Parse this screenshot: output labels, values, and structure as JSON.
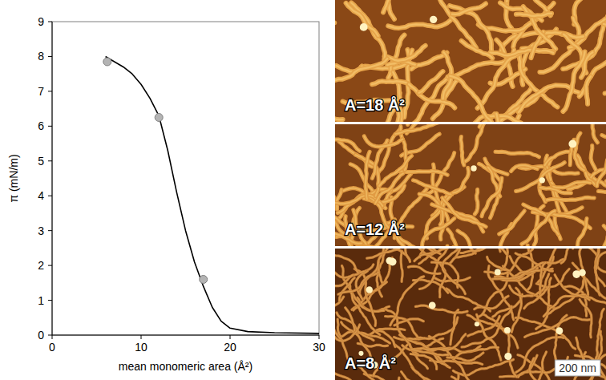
{
  "chart_data": {
    "type": "line",
    "x_label": "mean monomeric area (Å²)",
    "y_label": "π (mN/m)",
    "xlim": [
      0,
      30
    ],
    "ylim": [
      0,
      9
    ],
    "xticks": [
      0,
      10,
      20,
      30
    ],
    "yticks": [
      0,
      1,
      2,
      3,
      4,
      5,
      6,
      7,
      8,
      9
    ],
    "grid": false,
    "series": [
      {
        "type": "line",
        "color": "#000000",
        "line_style": "solid",
        "x": [
          6,
          7,
          8,
          9,
          10,
          11,
          12,
          13,
          14,
          15,
          16,
          17,
          18,
          19,
          20,
          22,
          25,
          30
        ],
        "values": [
          8.0,
          7.85,
          7.7,
          7.5,
          7.2,
          6.8,
          6.3,
          5.3,
          4.1,
          3.0,
          2.1,
          1.4,
          0.8,
          0.4,
          0.2,
          0.1,
          0.07,
          0.05
        ]
      },
      {
        "type": "scatter",
        "color": "#b4b4b4",
        "marker": "circle",
        "x": [
          6.2,
          12,
          17
        ],
        "values": [
          7.85,
          6.25,
          1.6
        ]
      }
    ]
  },
  "panels": [
    {
      "label": "A=18 Å²"
    },
    {
      "label": "A=12 Å²"
    },
    {
      "label": "A=8 Å²"
    }
  ],
  "scale_bar": "200 nm"
}
